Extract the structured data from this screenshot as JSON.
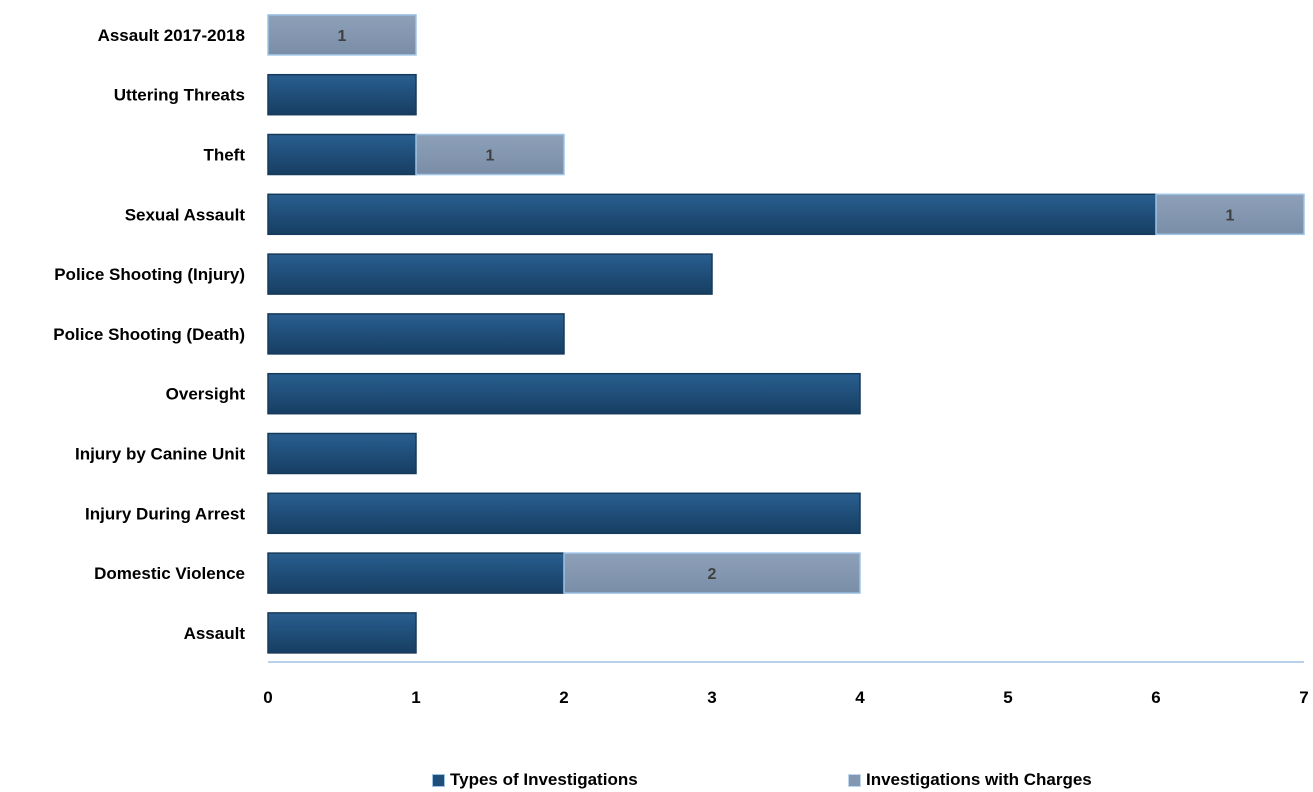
{
  "chart_data": {
    "type": "bar",
    "orientation": "horizontal",
    "stacked": true,
    "categories": [
      "Assault 2017-2018",
      "Uttering Threats",
      "Theft",
      "Sexual Assault",
      "Police Shooting (Injury)",
      "Police Shooting (Death)",
      "Oversight",
      "Injury by Canine Unit",
      "Injury During Arrest",
      "Domestic Violence",
      "Assault"
    ],
    "series": [
      {
        "name": "Types of Investigations",
        "color": "#1F4E79",
        "values": [
          0,
          1,
          1,
          6,
          3,
          2,
          4,
          1,
          4,
          2,
          1
        ],
        "labels": [
          "",
          "",
          "",
          "",
          "",
          "",
          "",
          "",
          "",
          "",
          ""
        ]
      },
      {
        "name": "Investigations with Charges",
        "color": "#8497B0",
        "values": [
          1,
          0,
          1,
          1,
          0,
          0,
          0,
          0,
          0,
          2,
          0
        ],
        "labels": [
          "1",
          "",
          "1",
          "1",
          "",
          "",
          "",
          "",
          "",
          "2",
          ""
        ]
      }
    ],
    "xlim": [
      0,
      7
    ],
    "xticks": [
      "0",
      "1",
      "2",
      "3",
      "4",
      "5",
      "6",
      "7"
    ],
    "grid": false,
    "legend_position": "bottom"
  }
}
